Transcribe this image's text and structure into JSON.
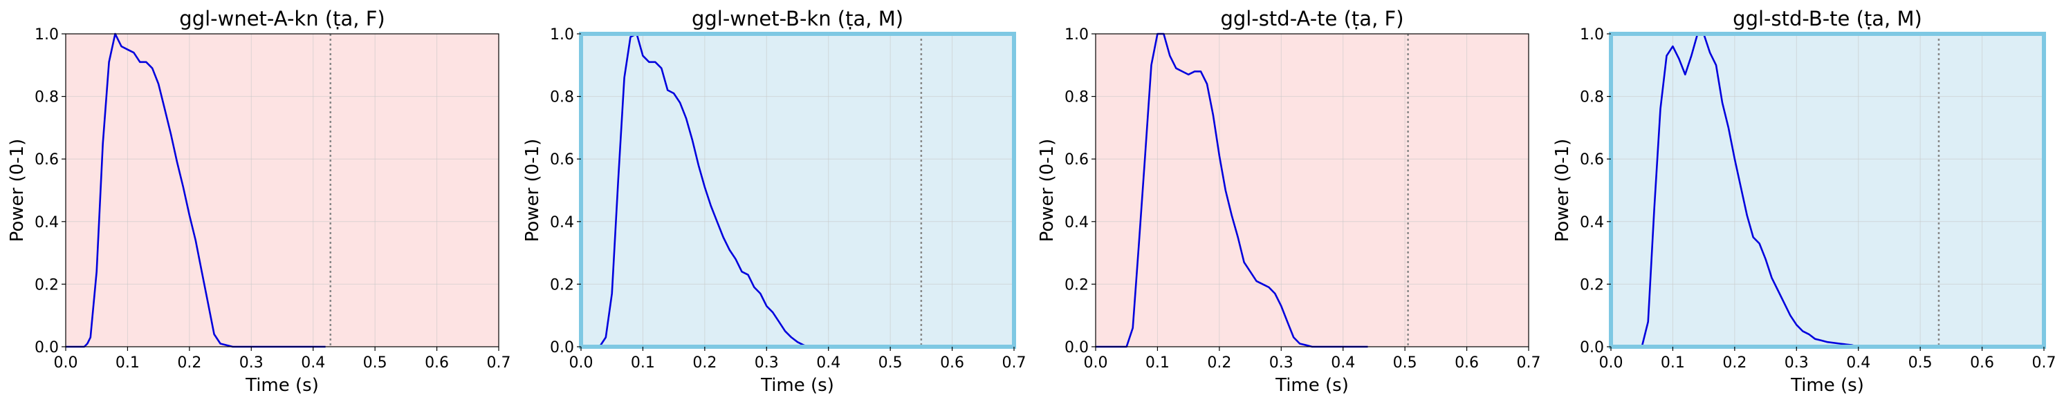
{
  "chart_data": [
    {
      "type": "line",
      "title": "ggl-wnet-A-kn (ṭa, F)",
      "xlabel": "Time (s)",
      "ylabel": "Power (0-1)",
      "xlim": [
        0,
        0.7
      ],
      "ylim": [
        0,
        1
      ],
      "xticks": [
        "0.0",
        "0.1",
        "0.2",
        "0.3",
        "0.4",
        "0.5",
        "0.6",
        "0.7"
      ],
      "yticks": [
        "0.0",
        "0.2",
        "0.4",
        "0.6",
        "0.8",
        "1.0"
      ],
      "grid": true,
      "background": "#fde3e3",
      "highlight_border": false,
      "vline_x": 0.428,
      "line_color": "#0000dd",
      "series": [
        {
          "x": [
            0,
            0.01,
            0.02,
            0.03,
            0.035,
            0.04,
            0.05,
            0.06,
            0.07,
            0.08,
            0.085,
            0.09,
            0.1,
            0.11,
            0.12,
            0.13,
            0.14,
            0.15,
            0.16,
            0.17,
            0.18,
            0.19,
            0.2,
            0.21,
            0.22,
            0.23,
            0.24,
            0.25,
            0.26,
            0.27,
            0.28,
            0.29,
            0.3,
            0.35,
            0.4,
            0.42
          ],
          "y": [
            0,
            0,
            0,
            0,
            0.01,
            0.03,
            0.24,
            0.65,
            0.91,
            1.0,
            0.98,
            0.96,
            0.95,
            0.94,
            0.91,
            0.91,
            0.89,
            0.84,
            0.76,
            0.68,
            0.59,
            0.51,
            0.42,
            0.34,
            0.24,
            0.14,
            0.04,
            0.01,
            0.005,
            0,
            0,
            0,
            0,
            0,
            0,
            0
          ]
        }
      ]
    },
    {
      "type": "line",
      "title": "ggl-wnet-B-kn (ṭa, M)",
      "xlabel": "Time (s)",
      "ylabel": "Power (0-1)",
      "xlim": [
        0,
        0.7
      ],
      "ylim": [
        0,
        1
      ],
      "xticks": [
        "0.0",
        "0.1",
        "0.2",
        "0.3",
        "0.4",
        "0.5",
        "0.6",
        "0.7"
      ],
      "yticks": [
        "0.0",
        "0.2",
        "0.4",
        "0.6",
        "0.8",
        "1.0"
      ],
      "grid": true,
      "background": "#ddeef6",
      "highlight_border": true,
      "vline_x": 0.55,
      "line_color": "#0000dd",
      "series": [
        {
          "x": [
            0.03,
            0.04,
            0.05,
            0.06,
            0.07,
            0.08,
            0.09,
            0.1,
            0.11,
            0.12,
            0.13,
            0.14,
            0.15,
            0.16,
            0.17,
            0.18,
            0.19,
            0.2,
            0.21,
            0.22,
            0.23,
            0.24,
            0.25,
            0.26,
            0.27,
            0.28,
            0.29,
            0.3,
            0.31,
            0.32,
            0.33,
            0.34,
            0.35,
            0.36,
            0.37,
            0.38,
            0.39
          ],
          "y": [
            0,
            0.03,
            0.17,
            0.53,
            0.86,
            0.99,
            1.0,
            0.93,
            0.91,
            0.91,
            0.89,
            0.82,
            0.81,
            0.78,
            0.73,
            0.66,
            0.58,
            0.51,
            0.45,
            0.4,
            0.35,
            0.31,
            0.28,
            0.24,
            0.23,
            0.19,
            0.17,
            0.13,
            0.11,
            0.08,
            0.05,
            0.03,
            0.015,
            0.005,
            0,
            0,
            0
          ]
        }
      ]
    },
    {
      "type": "line",
      "title": "ggl-std-A-te (ṭa, F)",
      "xlabel": "Time (s)",
      "ylabel": "Power (0-1)",
      "xlim": [
        0,
        0.7
      ],
      "ylim": [
        0,
        1
      ],
      "xticks": [
        "0.0",
        "0.1",
        "0.2",
        "0.3",
        "0.4",
        "0.5",
        "0.6",
        "0.7"
      ],
      "yticks": [
        "0.0",
        "0.2",
        "0.4",
        "0.6",
        "0.8",
        "1.0"
      ],
      "grid": true,
      "background": "#fde3e3",
      "highlight_border": false,
      "vline_x": 0.505,
      "line_color": "#0000dd",
      "series": [
        {
          "x": [
            0,
            0.02,
            0.05,
            0.06,
            0.07,
            0.08,
            0.09,
            0.1,
            0.11,
            0.12,
            0.13,
            0.14,
            0.15,
            0.16,
            0.17,
            0.18,
            0.19,
            0.2,
            0.21,
            0.22,
            0.23,
            0.24,
            0.25,
            0.26,
            0.27,
            0.28,
            0.29,
            0.3,
            0.31,
            0.32,
            0.33,
            0.34,
            0.35,
            0.36,
            0.4,
            0.42,
            0.44
          ],
          "y": [
            0,
            0,
            0,
            0.06,
            0.33,
            0.61,
            0.9,
            1.0,
            1.0,
            0.93,
            0.89,
            0.88,
            0.87,
            0.88,
            0.88,
            0.84,
            0.74,
            0.61,
            0.5,
            0.42,
            0.35,
            0.27,
            0.24,
            0.21,
            0.2,
            0.19,
            0.17,
            0.13,
            0.08,
            0.03,
            0.01,
            0.005,
            0,
            0,
            0,
            0,
            0
          ]
        }
      ]
    },
    {
      "type": "line",
      "title": "ggl-std-B-te (ṭa, M)",
      "xlabel": "Time (s)",
      "ylabel": "Power (0-1)",
      "xlim": [
        0,
        0.7
      ],
      "ylim": [
        0,
        1
      ],
      "xticks": [
        "0.0",
        "0.1",
        "0.2",
        "0.3",
        "0.4",
        "0.5",
        "0.6",
        "0.7"
      ],
      "yticks": [
        "0.0",
        "0.2",
        "0.4",
        "0.6",
        "0.8",
        "1.0"
      ],
      "grid": true,
      "background": "#ddeef6",
      "highlight_border": true,
      "vline_x": 0.53,
      "line_color": "#0000dd",
      "series": [
        {
          "x": [
            0.05,
            0.06,
            0.07,
            0.08,
            0.09,
            0.1,
            0.11,
            0.12,
            0.13,
            0.14,
            0.15,
            0.16,
            0.17,
            0.18,
            0.19,
            0.2,
            0.21,
            0.22,
            0.23,
            0.24,
            0.25,
            0.26,
            0.27,
            0.28,
            0.29,
            0.3,
            0.31,
            0.32,
            0.33,
            0.34,
            0.35,
            0.37,
            0.39,
            0.4
          ],
          "y": [
            0,
            0.08,
            0.44,
            0.76,
            0.93,
            0.96,
            0.92,
            0.87,
            0.93,
            1.0,
            1.0,
            0.94,
            0.9,
            0.78,
            0.7,
            0.6,
            0.51,
            0.42,
            0.35,
            0.33,
            0.28,
            0.22,
            0.18,
            0.14,
            0.1,
            0.07,
            0.05,
            0.04,
            0.025,
            0.02,
            0.015,
            0.01,
            0.005,
            0
          ]
        }
      ]
    }
  ]
}
